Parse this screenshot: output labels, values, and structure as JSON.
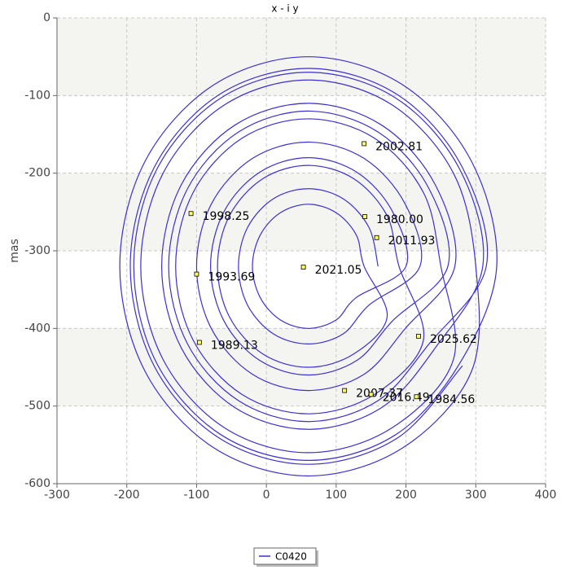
{
  "chart_data": {
    "type": "line",
    "title": "x - i y",
    "y_label": "mas",
    "xlim": [
      -300,
      400
    ],
    "ylim": [
      -600,
      0
    ],
    "xticks": [
      -300,
      -200,
      -100,
      0,
      100,
      200,
      300,
      400
    ],
    "yticks": [
      0,
      -100,
      -200,
      -300,
      -400,
      -500,
      -600
    ],
    "grid": true,
    "series": [
      {
        "name": "C0420",
        "color": "#3b2fd6",
        "x": [
          160,
          147,
          110,
          60,
          10,
          -27,
          -40,
          -27,
          10,
          60,
          110,
          147,
          220,
          199,
          140,
          60,
          -20,
          -79,
          -100,
          -79,
          -20,
          60,
          140,
          199,
          270,
          242,
          165,
          60,
          -45,
          -122,
          -150,
          -122,
          -45,
          60,
          165,
          242,
          310,
          277,
          185,
          60,
          -65,
          -157,
          -190,
          -157,
          -65,
          60,
          185,
          277,
          330,
          294,
          195,
          60,
          -75,
          -174,
          -210,
          -174,
          -75,
          60,
          195,
          294,
          300,
          268,
          180,
          60,
          -60,
          -148,
          -180,
          -148,
          -60,
          60,
          180,
          268,
          250,
          225,
          155,
          60,
          -35,
          -105,
          -130,
          -105,
          -35,
          60,
          155,
          225,
          190,
          173,
          125,
          60,
          -5,
          -53,
          -70,
          -53,
          -5,
          60,
          125,
          173,
          140,
          129,
          100,
          60,
          20,
          -9,
          -20,
          -9,
          20,
          60,
          100,
          129,
          200,
          181,
          130,
          60,
          -10,
          -61,
          -80,
          -61,
          -10,
          60,
          130,
          181,
          260,
          233,
          160,
          60,
          -40,
          -113,
          -140,
          -113,
          -40,
          60,
          160,
          233,
          315,
          281,
          188,
          60,
          -68,
          -161,
          -195,
          -161,
          -68,
          60,
          188,
          281
        ],
        "values": [
          -320,
          -270,
          -233,
          -220,
          -233,
          -270,
          -320,
          -370,
          -407,
          -420,
          -407,
          -370,
          -320,
          -240,
          -181,
          -160,
          -181,
          -240,
          -320,
          -400,
          -459,
          -480,
          -459,
          -400,
          -320,
          -215,
          -138,
          -110,
          -138,
          -215,
          -320,
          -425,
          -502,
          -530,
          -502,
          -425,
          -320,
          -195,
          -103,
          -70,
          -103,
          -195,
          -320,
          -445,
          -537,
          -570,
          -537,
          -445,
          -320,
          -185,
          -86,
          -50,
          -86,
          -185,
          -320,
          -455,
          -554,
          -590,
          -554,
          -455,
          -320,
          -200,
          -112,
          -80,
          -112,
          -200,
          -320,
          -440,
          -528,
          -560,
          -528,
          -440,
          -320,
          -225,
          -155,
          -130,
          -155,
          -225,
          -320,
          -415,
          -485,
          -510,
          -485,
          -415,
          -320,
          -255,
          -207,
          -190,
          -207,
          -255,
          -320,
          -385,
          -433,
          -450,
          -433,
          -385,
          -320,
          -280,
          -251,
          -240,
          -251,
          -280,
          -320,
          -360,
          -389,
          -400,
          -389,
          -360,
          -320,
          -250,
          -199,
          -180,
          -199,
          -250,
          -320,
          -390,
          -441,
          -460,
          -441,
          -390,
          -320,
          -220,
          -147,
          -120,
          -147,
          -220,
          -320,
          -420,
          -493,
          -520,
          -493,
          -420,
          -320,
          -193,
          -99,
          -65,
          -99,
          -193,
          -320,
          -448,
          -541,
          -575,
          -541,
          -448
        ]
      }
    ],
    "annotations": [
      {
        "label": "2002.81",
        "x": 140,
        "y": -162
      },
      {
        "label": "1998.25",
        "x": -108,
        "y": -252
      },
      {
        "label": "1980.00",
        "x": 141,
        "y": -256
      },
      {
        "label": "2011.93",
        "x": 158,
        "y": -283
      },
      {
        "label": "2021.05",
        "x": 53,
        "y": -321
      },
      {
        "label": "1993.69",
        "x": -100,
        "y": -330
      },
      {
        "label": "2025.62",
        "x": 218,
        "y": -410
      },
      {
        "label": "1989.13",
        "x": -96,
        "y": -418
      },
      {
        "label": "2007.37",
        "x": 112,
        "y": -480
      },
      {
        "label": "2016.49",
        "x": 150,
        "y": -485
      },
      {
        "label": "1984.56",
        "x": 215,
        "y": -488
      }
    ]
  }
}
